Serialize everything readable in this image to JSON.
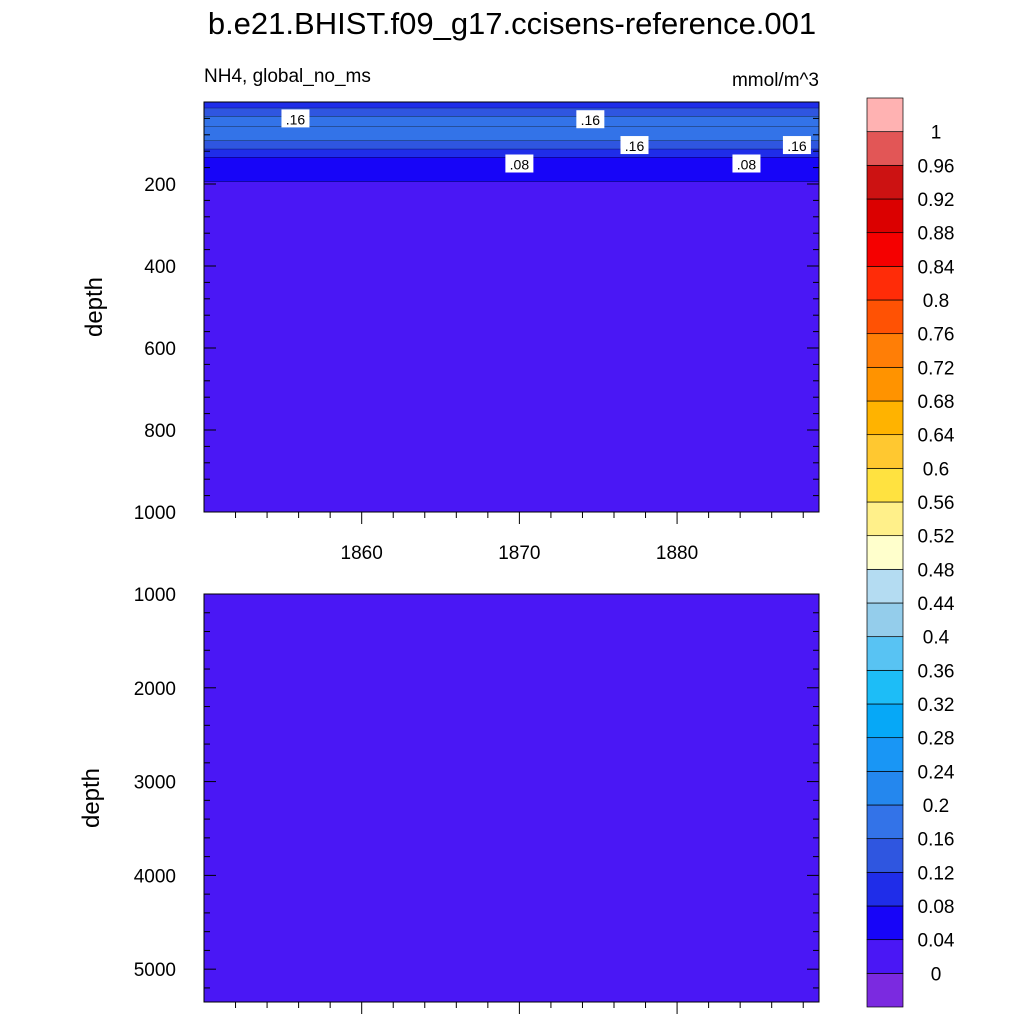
{
  "chart_data": {
    "type": "heatmap",
    "title": "b.e21.BHIST.f09_g17.ccisens-reference.001",
    "variable_label": "NH4, global_no_ms",
    "units": "mmol/m^3",
    "xlabel": "",
    "ylabel": "depth",
    "x_ticks": [
      1860,
      1870,
      1880
    ],
    "xlim": [
      1850,
      1889
    ],
    "upper_panel": {
      "ylim": [
        0,
        1000
      ],
      "y_ticks": [
        200,
        400,
        600,
        800,
        1000
      ],
      "y_inverted": true,
      "depth_layers": [
        {
          "from": 0,
          "to": 15,
          "value": 0.1
        },
        {
          "from": 15,
          "to": 35,
          "value": 0.14
        },
        {
          "from": 35,
          "to": 60,
          "value": 0.16
        },
        {
          "from": 60,
          "to": 95,
          "value": 0.18
        },
        {
          "from": 95,
          "to": 115,
          "value": 0.14
        },
        {
          "from": 115,
          "to": 135,
          "value": 0.1
        },
        {
          "from": 135,
          "to": 195,
          "value": 0.06
        },
        {
          "from": 195,
          "to": 1000,
          "value": 0.02
        }
      ],
      "contour_labels": [
        {
          "text": ".16",
          "year": 1855.8,
          "depth": 40
        },
        {
          "text": ".16",
          "year": 1874.5,
          "depth": 42
        },
        {
          "text": ".16",
          "year": 1877.3,
          "depth": 105
        },
        {
          "text": ".16",
          "year": 1887.6,
          "depth": 105
        },
        {
          "text": ".08",
          "year": 1870.0,
          "depth": 150
        },
        {
          "text": ".08",
          "year": 1884.4,
          "depth": 150
        }
      ]
    },
    "lower_panel": {
      "ylim": [
        1000,
        5350
      ],
      "y_ticks": [
        1000,
        2000,
        3000,
        4000,
        5000
      ],
      "y_inverted": true,
      "depth_layers": [
        {
          "from": 1000,
          "to": 5350,
          "value": 0.02
        }
      ]
    },
    "colorbar": {
      "levels": [
        "0",
        "0.04",
        "0.08",
        "0.12",
        "0.16",
        "0.2",
        "0.24",
        "0.28",
        "0.32",
        "0.36",
        "0.4",
        "0.44",
        "0.48",
        "0.52",
        "0.56",
        "0.6",
        "0.64",
        "0.68",
        "0.72",
        "0.76",
        "0.8",
        "0.84",
        "0.88",
        "0.92",
        "0.96",
        "1"
      ],
      "colors": [
        "#7b2ae0",
        "#4a17f5",
        "#1705f8",
        "#1f2de9",
        "#2f56e0",
        "#3373e8",
        "#2487ee",
        "#1996f5",
        "#06a8f7",
        "#1dbdf7",
        "#58c3f3",
        "#94cdeb",
        "#b4dcf2",
        "#ffffcc",
        "#fff08a",
        "#ffe240",
        "#ffc830",
        "#ffb300",
        "#ff9300",
        "#ff7e06",
        "#ff5204",
        "#ff2c08",
        "#f50000",
        "#db0000",
        "#cc1212",
        "#e25656",
        "#ffb2b2"
      ]
    }
  }
}
